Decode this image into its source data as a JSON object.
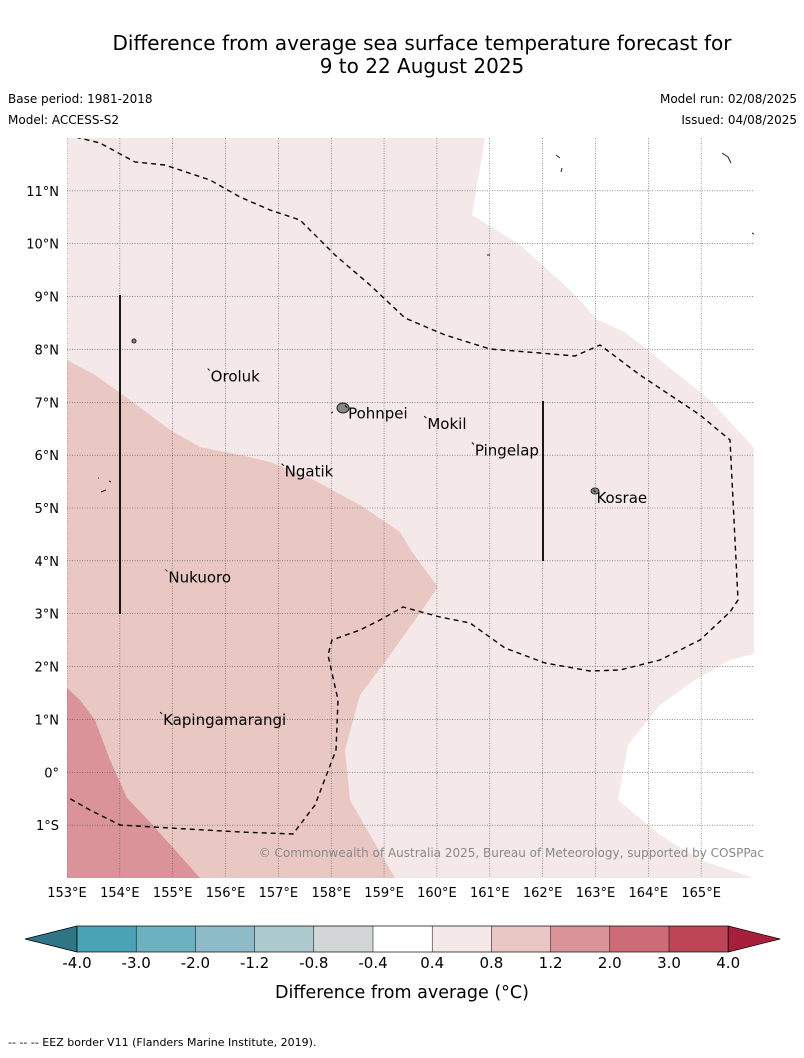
{
  "title_line1": "Difference from average sea surface temperature forecast for",
  "title_line2": "9 to 22 August 2025",
  "base_period": "Base period: 1981-2018",
  "model": "Model: ACCESS-S2",
  "model_run": "Model run: 02/08/2025",
  "issued": "Issued: 04/08/2025",
  "copyright": "© Commonwealth of Australia 2025, Bureau of Meteorology, supported by COSPPac",
  "footnote": "--  --  -- EEZ border V11 (Flanders Marine Institute, 2019).",
  "map": {
    "lon_range": [
      153,
      166
    ],
    "lat_range": [
      -2,
      12
    ],
    "lat_ticks": [
      {
        "lat": 11,
        "label": "11°N"
      },
      {
        "lat": 10,
        "label": "10°N"
      },
      {
        "lat": 9,
        "label": "9°N"
      },
      {
        "lat": 8,
        "label": "8°N"
      },
      {
        "lat": 7,
        "label": "7°N"
      },
      {
        "lat": 6,
        "label": "6°N"
      },
      {
        "lat": 5,
        "label": "5°N"
      },
      {
        "lat": 4,
        "label": "4°N"
      },
      {
        "lat": 3,
        "label": "3°N"
      },
      {
        "lat": 2,
        "label": "2°N"
      },
      {
        "lat": 1,
        "label": "1°N"
      },
      {
        "lat": 0,
        "label": "0°"
      },
      {
        "lat": -1,
        "label": "1°S"
      }
    ],
    "lon_ticks": [
      {
        "lon": 153,
        "label": "153°E"
      },
      {
        "lon": 154,
        "label": "154°E"
      },
      {
        "lon": 155,
        "label": "155°E"
      },
      {
        "lon": 156,
        "label": "156°E"
      },
      {
        "lon": 157,
        "label": "157°E"
      },
      {
        "lon": 158,
        "label": "158°E"
      },
      {
        "lon": 159,
        "label": "159°E"
      },
      {
        "lon": 160,
        "label": "160°E"
      },
      {
        "lon": 161,
        "label": "161°E"
      },
      {
        "lon": 162,
        "label": "162°E"
      },
      {
        "lon": 163,
        "label": "163°E"
      },
      {
        "lon": 164,
        "label": "164°E"
      },
      {
        "lon": 165,
        "label": "165°E"
      }
    ],
    "places": [
      {
        "name": "Oroluk",
        "lon": 155.7,
        "lat": 7.6
      },
      {
        "name": "Pohnpei",
        "lon": 158.3,
        "lat": 6.9
      },
      {
        "name": "Mokil",
        "lon": 159.8,
        "lat": 6.7
      },
      {
        "name": "Pingelap",
        "lon": 160.7,
        "lat": 6.2
      },
      {
        "name": "Ngatik",
        "lon": 157.1,
        "lat": 5.8
      },
      {
        "name": "Kosrae",
        "lon": 163.0,
        "lat": 5.3
      },
      {
        "name": "Nukuoro",
        "lon": 154.9,
        "lat": 3.8
      },
      {
        "name": "Kapingamarangi",
        "lon": 154.8,
        "lat": 1.1
      }
    ]
  },
  "colorbar": {
    "title": "Difference from average (°C)",
    "levels": [
      "-4.0",
      "-3.0",
      "-2.0",
      "-1.2",
      "-0.8",
      "-0.4",
      "0.4",
      "0.8",
      "1.2",
      "2.0",
      "3.0",
      "4.0"
    ],
    "colors": [
      "#48a3b4",
      "#6bb1c0",
      "#8dbcc8",
      "#accacd",
      "#d3d6d6",
      "#ffffff",
      "#f5e8e8",
      "#e9c8c4",
      "#d99399",
      "#cd6b76",
      "#be4555"
    ],
    "under_color": "#2f7585",
    "over_color": "#a81f3c"
  },
  "contours": {
    "level_0_4_color": "#f5e8e8",
    "level_0_8_color": "#e9c8c4",
    "level_1_2_color": "#d99399"
  }
}
